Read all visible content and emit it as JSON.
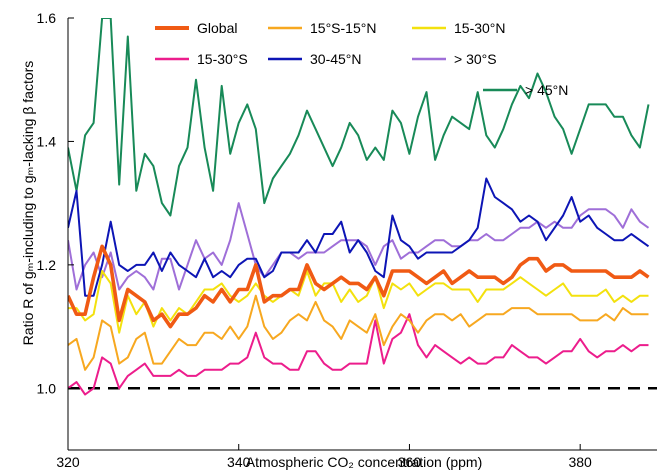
{
  "chart_data": {
    "type": "line",
    "xlabel": "Atmospheric CO₂ concentration (ppm)",
    "ylabel": "Ratio R of gₘ-including to gₘ-lacking β factors",
    "xlim": [
      320,
      389
    ],
    "ylim": [
      0.9,
      1.6
    ],
    "xticks": [
      320,
      340,
      360,
      380
    ],
    "yticks": [
      1.0,
      1.2,
      1.4,
      1.6
    ],
    "x_tick_labels": [
      "320",
      "340",
      "360",
      "380"
    ],
    "y_tick_labels": [
      "1.0",
      "1.2",
      "1.4",
      "1.6"
    ],
    "grid": false,
    "legend": "top, inside plot",
    "reference_line": {
      "y": 1.0,
      "style": "dashed",
      "color": "#000000"
    },
    "x": [
      320,
      321,
      322,
      323,
      324,
      325,
      326,
      327,
      328,
      329,
      330,
      331,
      332,
      333,
      334,
      335,
      336,
      337,
      338,
      339,
      340,
      341,
      342,
      343,
      344,
      345,
      346,
      347,
      348,
      349,
      350,
      351,
      352,
      353,
      354,
      355,
      356,
      357,
      358,
      359,
      360,
      361,
      362,
      363,
      364,
      365,
      366,
      367,
      368,
      369,
      370,
      371,
      372,
      373,
      374,
      375,
      376,
      377,
      378,
      379,
      380,
      381,
      382,
      383,
      384,
      385,
      386,
      387,
      388
    ],
    "series": [
      {
        "name": "Global",
        "color": "#f05a14",
        "values": [
          1.15,
          1.12,
          1.12,
          1.18,
          1.23,
          1.2,
          1.11,
          1.16,
          1.15,
          1.14,
          1.11,
          1.12,
          1.1,
          1.12,
          1.12,
          1.13,
          1.15,
          1.14,
          1.16,
          1.14,
          1.16,
          1.16,
          1.2,
          1.14,
          1.15,
          1.15,
          1.16,
          1.16,
          1.2,
          1.17,
          1.16,
          1.17,
          1.18,
          1.17,
          1.17,
          1.16,
          1.18,
          1.15,
          1.19,
          1.19,
          1.19,
          1.18,
          1.17,
          1.18,
          1.19,
          1.17,
          1.18,
          1.19,
          1.18,
          1.18,
          1.18,
          1.17,
          1.18,
          1.2,
          1.21,
          1.21,
          1.19,
          1.2,
          1.2,
          1.19,
          1.19,
          1.19,
          1.19,
          1.19,
          1.18,
          1.18,
          1.18,
          1.19,
          1.18
        ]
      },
      {
        "name": "15°S-15°N",
        "color": "#f7a820",
        "values": [
          1.07,
          1.08,
          1.03,
          1.05,
          1.11,
          1.1,
          1.04,
          1.05,
          1.08,
          1.09,
          1.04,
          1.04,
          1.06,
          1.08,
          1.07,
          1.07,
          1.09,
          1.09,
          1.08,
          1.1,
          1.08,
          1.1,
          1.15,
          1.1,
          1.08,
          1.09,
          1.11,
          1.12,
          1.11,
          1.14,
          1.11,
          1.1,
          1.08,
          1.11,
          1.1,
          1.09,
          1.12,
          1.07,
          1.1,
          1.12,
          1.11,
          1.09,
          1.11,
          1.12,
          1.12,
          1.11,
          1.12,
          1.1,
          1.11,
          1.12,
          1.12,
          1.12,
          1.13,
          1.13,
          1.13,
          1.12,
          1.12,
          1.12,
          1.12,
          1.12,
          1.11,
          1.11,
          1.11,
          1.12,
          1.11,
          1.13,
          1.12,
          1.12,
          1.12
        ]
      },
      {
        "name": "15-30°N",
        "color": "#f3e10e",
        "values": [
          1.13,
          1.13,
          1.11,
          1.12,
          1.19,
          1.17,
          1.09,
          1.15,
          1.12,
          1.14,
          1.1,
          1.13,
          1.11,
          1.13,
          1.12,
          1.14,
          1.16,
          1.16,
          1.17,
          1.15,
          1.14,
          1.15,
          1.17,
          1.15,
          1.14,
          1.15,
          1.16,
          1.15,
          1.19,
          1.15,
          1.17,
          1.17,
          1.14,
          1.16,
          1.14,
          1.15,
          1.18,
          1.13,
          1.17,
          1.16,
          1.17,
          1.15,
          1.16,
          1.17,
          1.17,
          1.16,
          1.16,
          1.16,
          1.14,
          1.16,
          1.16,
          1.16,
          1.17,
          1.18,
          1.17,
          1.16,
          1.15,
          1.16,
          1.17,
          1.15,
          1.15,
          1.15,
          1.15,
          1.16,
          1.14,
          1.15,
          1.14,
          1.15,
          1.15
        ]
      },
      {
        "name": "15-30°S",
        "color": "#ec1d8c",
        "values": [
          1.0,
          1.01,
          0.99,
          1.0,
          1.05,
          1.04,
          1.0,
          1.02,
          1.03,
          1.04,
          1.02,
          1.02,
          1.02,
          1.03,
          1.02,
          1.02,
          1.03,
          1.03,
          1.03,
          1.04,
          1.04,
          1.05,
          1.09,
          1.05,
          1.04,
          1.04,
          1.03,
          1.03,
          1.06,
          1.06,
          1.04,
          1.03,
          1.03,
          1.04,
          1.04,
          1.04,
          1.11,
          1.04,
          1.08,
          1.09,
          1.12,
          1.07,
          1.05,
          1.07,
          1.06,
          1.05,
          1.04,
          1.05,
          1.04,
          1.04,
          1.05,
          1.05,
          1.07,
          1.06,
          1.05,
          1.05,
          1.04,
          1.05,
          1.06,
          1.06,
          1.08,
          1.06,
          1.05,
          1.06,
          1.06,
          1.07,
          1.06,
          1.07,
          1.07
        ]
      },
      {
        "name": "30-45°N",
        "color": "#0d15b5",
        "values": [
          1.26,
          1.32,
          1.15,
          1.15,
          1.2,
          1.27,
          1.2,
          1.19,
          1.2,
          1.2,
          1.22,
          1.19,
          1.22,
          1.2,
          1.19,
          1.18,
          1.21,
          1.18,
          1.19,
          1.18,
          1.2,
          1.21,
          1.21,
          1.18,
          1.19,
          1.22,
          1.22,
          1.22,
          1.24,
          1.22,
          1.25,
          1.25,
          1.27,
          1.22,
          1.24,
          1.22,
          1.19,
          1.18,
          1.28,
          1.24,
          1.23,
          1.21,
          1.22,
          1.22,
          1.22,
          1.22,
          1.23,
          1.24,
          1.26,
          1.34,
          1.31,
          1.3,
          1.29,
          1.27,
          1.28,
          1.27,
          1.24,
          1.26,
          1.28,
          1.31,
          1.27,
          1.28,
          1.26,
          1.25,
          1.24,
          1.24,
          1.25,
          1.24,
          1.23
        ]
      },
      {
        "name": "> 30°S",
        "color": "#9f6fd8",
        "values": [
          1.24,
          1.16,
          1.2,
          1.22,
          1.18,
          1.22,
          1.16,
          1.18,
          1.19,
          1.18,
          1.16,
          1.21,
          1.21,
          1.16,
          1.2,
          1.24,
          1.21,
          1.22,
          1.2,
          1.24,
          1.3,
          1.25,
          1.2,
          1.18,
          1.2,
          1.22,
          1.22,
          1.21,
          1.22,
          1.22,
          1.22,
          1.23,
          1.24,
          1.24,
          1.24,
          1.23,
          1.2,
          1.23,
          1.24,
          1.21,
          1.22,
          1.22,
          1.23,
          1.24,
          1.24,
          1.23,
          1.23,
          1.24,
          1.24,
          1.25,
          1.24,
          1.24,
          1.25,
          1.26,
          1.26,
          1.27,
          1.26,
          1.27,
          1.26,
          1.26,
          1.28,
          1.29,
          1.29,
          1.29,
          1.28,
          1.26,
          1.29,
          1.27,
          1.26
        ]
      },
      {
        "name": "> 45°N",
        "color": "#188a58",
        "values": [
          1.39,
          1.32,
          1.41,
          1.43,
          1.6,
          1.6,
          1.33,
          1.57,
          1.32,
          1.38,
          1.36,
          1.3,
          1.28,
          1.36,
          1.39,
          1.5,
          1.39,
          1.32,
          1.49,
          1.38,
          1.43,
          1.46,
          1.42,
          1.3,
          1.34,
          1.36,
          1.38,
          1.41,
          1.45,
          1.42,
          1.39,
          1.36,
          1.39,
          1.43,
          1.41,
          1.37,
          1.39,
          1.37,
          1.45,
          1.43,
          1.38,
          1.44,
          1.48,
          1.37,
          1.41,
          1.44,
          1.43,
          1.42,
          1.48,
          1.41,
          1.39,
          1.42,
          1.46,
          1.49,
          1.47,
          1.51,
          1.48,
          1.44,
          1.42,
          1.38,
          1.42,
          1.46,
          1.46,
          1.46,
          1.44,
          1.44,
          1.41,
          1.39,
          1.46
        ]
      }
    ]
  }
}
